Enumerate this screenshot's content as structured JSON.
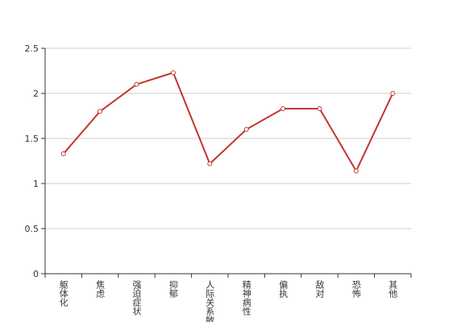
{
  "chart_data": {
    "type": "line",
    "categories": [
      "躯体化",
      "焦虑",
      "强迫症状",
      "抑郁",
      "人际关系敏感",
      "精神病性",
      "偏执",
      "敌对",
      "恐怖",
      "其他"
    ],
    "series": [
      {
        "color": "#c23531",
        "values": [
          1.33,
          1.8,
          2.1,
          2.23,
          1.22,
          1.6,
          1.83,
          1.83,
          1.14,
          2.0
        ]
      }
    ],
    "ylim": [
      0,
      2.5
    ],
    "yticks": [
      0,
      0.5,
      1,
      1.5,
      2,
      2.5
    ],
    "grid": true
  }
}
